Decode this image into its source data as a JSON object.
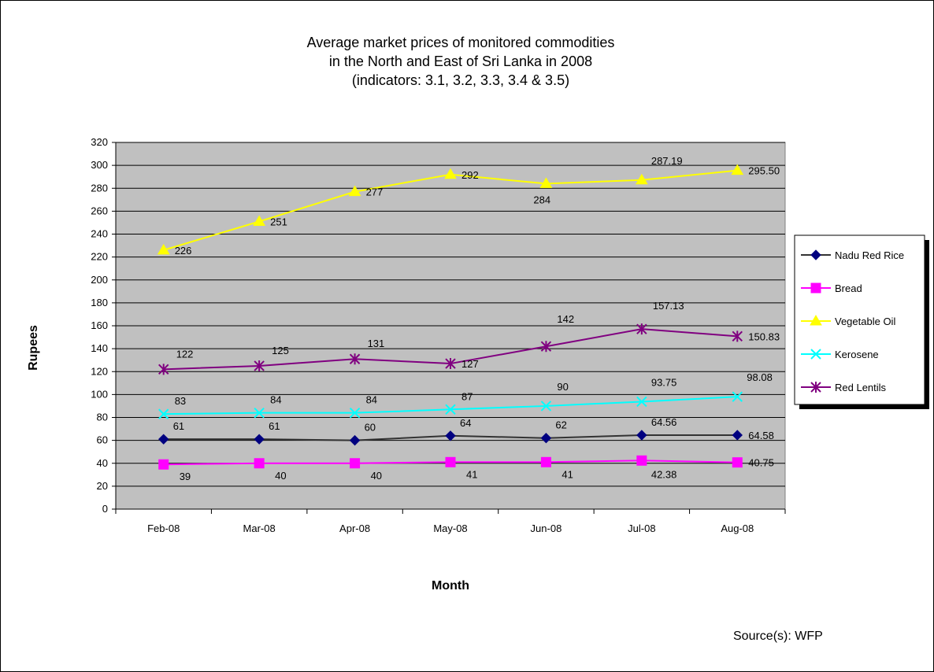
{
  "chart_data": {
    "type": "line",
    "title_lines": [
      "Average market prices of monitored commodities",
      "in the North and East of Sri Lanka in 2008",
      "(indicators: 3.1, 3.2, 3.3, 3.4 & 3.5)"
    ],
    "xlabel": "Month",
    "ylabel": "Rupees",
    "categories": [
      "Feb-08",
      "Mar-08",
      "Apr-08",
      "May-08",
      "Jun-08",
      "Jul-08",
      "Aug-08"
    ],
    "ylim": [
      0,
      320
    ],
    "yticks": [
      "0",
      "20",
      "40",
      "60",
      "80",
      "100",
      "120",
      "140",
      "160",
      "180",
      "200",
      "220",
      "240",
      "260",
      "280",
      "300",
      "320"
    ],
    "grid": true,
    "legend_position": "right",
    "plot_background": "#c0c0c0",
    "series": [
      {
        "name": "Nadu Red Rice",
        "color": "#000080",
        "line_color": "#333333",
        "marker": "diamond",
        "values": [
          61,
          61,
          60,
          64,
          62,
          64.56,
          64.58
        ],
        "labels": [
          "61",
          "61",
          "60",
          "64",
          "62",
          "64.56",
          "64.58"
        ]
      },
      {
        "name": "Bread",
        "color": "#ff00ff",
        "line_color": "#ff00ff",
        "marker": "square",
        "values": [
          39,
          40,
          40,
          41,
          41,
          42.38,
          40.75
        ],
        "labels": [
          "39",
          "40",
          "40",
          "41",
          "41",
          "42.38",
          "40.75"
        ]
      },
      {
        "name": "Vegetable Oil",
        "color": "#ffff00",
        "line_color": "#ffff00",
        "marker": "triangle",
        "values": [
          226,
          251,
          277,
          292,
          284,
          287.19,
          295.5
        ],
        "labels": [
          "226",
          "251",
          "277",
          "292",
          "284",
          "287.19",
          "295.50"
        ]
      },
      {
        "name": "Kerosene",
        "color": "#00ffff",
        "line_color": "#00ffff",
        "marker": "x",
        "values": [
          83,
          84,
          84,
          87,
          90,
          93.75,
          98.08
        ],
        "labels": [
          "83",
          "84",
          "84",
          "87",
          "90",
          "93.75",
          "98.08"
        ]
      },
      {
        "name": "Red Lentils",
        "color": "#800080",
        "line_color": "#800080",
        "marker": "star",
        "values": [
          122,
          125,
          131,
          127,
          142,
          157.13,
          150.83
        ],
        "labels": [
          "122",
          "125",
          "131",
          "127",
          "142",
          "157.13",
          "150.83"
        ]
      }
    ],
    "source_note": "Source(s): WFP"
  }
}
